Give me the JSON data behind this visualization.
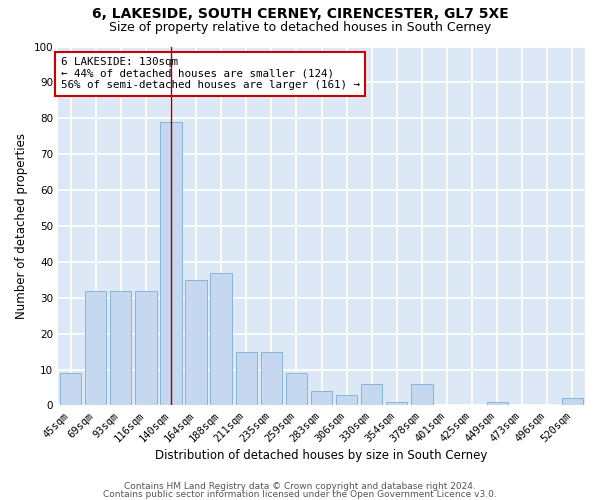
{
  "title": "6, LAKESIDE, SOUTH CERNEY, CIRENCESTER, GL7 5XE",
  "subtitle": "Size of property relative to detached houses in South Cerney",
  "xlabel": "Distribution of detached houses by size in South Cerney",
  "ylabel": "Number of detached properties",
  "categories": [
    "45sqm",
    "69sqm",
    "93sqm",
    "116sqm",
    "140sqm",
    "164sqm",
    "188sqm",
    "211sqm",
    "235sqm",
    "259sqm",
    "283sqm",
    "306sqm",
    "330sqm",
    "354sqm",
    "378sqm",
    "401sqm",
    "425sqm",
    "449sqm",
    "473sqm",
    "496sqm",
    "520sqm"
  ],
  "values": [
    9,
    32,
    32,
    32,
    79,
    35,
    37,
    15,
    15,
    9,
    4,
    3,
    6,
    1,
    6,
    0,
    0,
    1,
    0,
    0,
    2
  ],
  "bar_color": "#c5d8f0",
  "bar_edge_color": "#7aadd4",
  "bg_color": "#dce8f5",
  "grid_color": "#ffffff",
  "vline_x_index": 4,
  "vline_color": "#990000",
  "annotation_box_text": "6 LAKESIDE: 130sqm\n← 44% of detached houses are smaller (124)\n56% of semi-detached houses are larger (161) →",
  "annotation_box_color": "#ffffff",
  "annotation_box_edge_color": "#cc0000",
  "ylim": [
    0,
    100
  ],
  "yticks": [
    0,
    10,
    20,
    30,
    40,
    50,
    60,
    70,
    80,
    90,
    100
  ],
  "footer1": "Contains HM Land Registry data © Crown copyright and database right 2024.",
  "footer2": "Contains public sector information licensed under the Open Government Licence v3.0.",
  "title_fontsize": 10,
  "subtitle_fontsize": 9,
  "axis_label_fontsize": 8.5,
  "tick_fontsize": 7.5,
  "annotation_fontsize": 7.8,
  "footer_fontsize": 6.5
}
